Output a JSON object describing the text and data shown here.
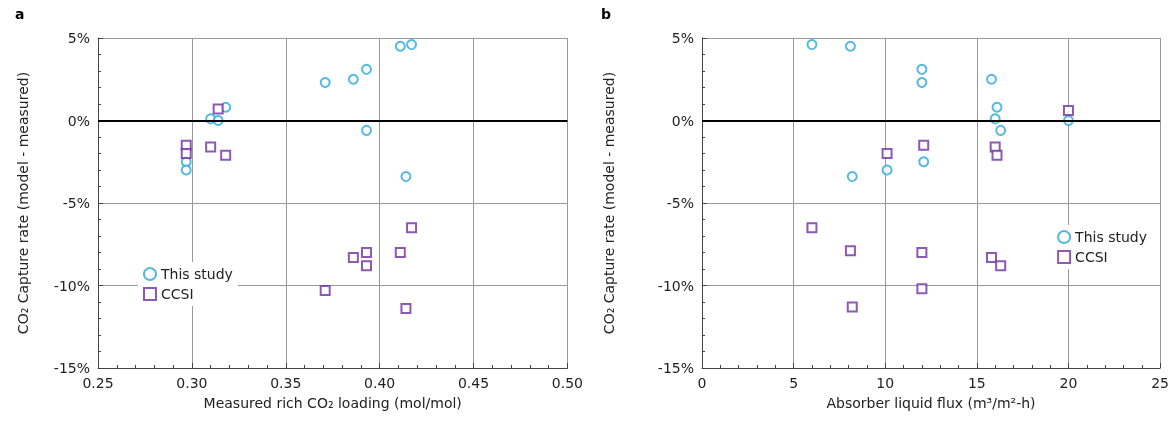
{
  "chart_data": [
    {
      "type": "scatter",
      "title": "a",
      "xlabel": "Measured rich CO₂ loading (mol/mol)",
      "ylabel": "CO₂ Capture rate (model - measured)",
      "xlim": [
        0.25,
        0.5
      ],
      "xticks": [
        {
          "value": 0.25,
          "label": "0.25"
        },
        {
          "value": 0.3,
          "label": "0.30"
        },
        {
          "value": 0.35,
          "label": "0.35"
        },
        {
          "value": 0.4,
          "label": "0.40"
        },
        {
          "value": 0.45,
          "label": "0.45"
        },
        {
          "value": 0.5,
          "label": "0.50"
        }
      ],
      "ylim": [
        -15,
        5
      ],
      "yticks": [
        {
          "value": -15,
          "label": "-15%"
        },
        {
          "value": -10,
          "label": "-10%"
        },
        {
          "value": -5,
          "label": "-5%"
        },
        {
          "value": 0,
          "label": "0%"
        },
        {
          "value": 5,
          "label": "5%"
        }
      ],
      "grid": true,
      "legend": "bottom left",
      "ref_lines": [
        {
          "axis": "y",
          "value": 0,
          "color": "#000000"
        }
      ],
      "series": [
        {
          "name": "This study",
          "color": "#29a9d9",
          "marker": "circle",
          "x": [
            0.297,
            0.297,
            0.31,
            0.314,
            0.318,
            0.371,
            0.386,
            0.393,
            0.393,
            0.411,
            0.417,
            0.414
          ],
          "values": [
            -2.5,
            -3.0,
            0.1,
            0.0,
            0.8,
            2.3,
            2.5,
            3.1,
            -0.6,
            4.5,
            4.6,
            -3.4
          ]
        },
        {
          "name": "CCSI",
          "color": "#7030a0",
          "marker": "square",
          "x": [
            0.297,
            0.297,
            0.31,
            0.314,
            0.318,
            0.371,
            0.386,
            0.393,
            0.393,
            0.411,
            0.417,
            0.414
          ],
          "values": [
            -1.5,
            -2.0,
            -1.6,
            0.7,
            -2.1,
            -10.3,
            -8.3,
            -8.0,
            -8.8,
            -8.0,
            -6.5,
            -11.4
          ]
        }
      ]
    },
    {
      "type": "scatter",
      "title": "b",
      "xlabel": "Absorber liquid flux (m³/m²-h)",
      "ylabel": "CO₂ Capture rate (model - measured)",
      "xlim": [
        0,
        25
      ],
      "xticks": [
        0,
        5,
        10,
        15,
        20,
        25
      ],
      "ylim": [
        -15,
        5
      ],
      "yticks": [
        {
          "value": -15,
          "label": "-15%"
        },
        {
          "value": -10,
          "label": "-10%"
        },
        {
          "value": -5,
          "label": "-5%"
        },
        {
          "value": 0,
          "label": "0%"
        },
        {
          "value": 5,
          "label": "5%"
        }
      ],
      "grid": true,
      "legend": "right",
      "ref_lines": [
        {
          "axis": "y",
          "value": 0,
          "color": "#000000"
        }
      ],
      "series": [
        {
          "name": "This study",
          "color": "#29a9d9",
          "marker": "circle",
          "x": [
            6.0,
            8.1,
            12.0,
            12.0,
            15.8,
            16.1,
            16.0,
            16.3,
            20.0,
            12.1,
            10.1,
            8.2
          ],
          "values": [
            4.6,
            4.5,
            3.1,
            2.3,
            2.5,
            0.8,
            0.1,
            -0.6,
            0.0,
            -2.5,
            -3.0,
            -3.4
          ]
        },
        {
          "name": "CCSI",
          "color": "#7030a0",
          "marker": "square",
          "x": [
            20.0,
            12.1,
            10.1,
            16.0,
            16.1,
            6.0,
            8.1,
            12.0,
            15.8,
            16.3,
            12.0,
            8.2
          ],
          "values": [
            0.6,
            -1.5,
            -2.0,
            -1.6,
            -2.1,
            -6.5,
            -7.9,
            -8.0,
            -8.3,
            -8.8,
            -10.2,
            -11.3
          ]
        }
      ]
    }
  ]
}
